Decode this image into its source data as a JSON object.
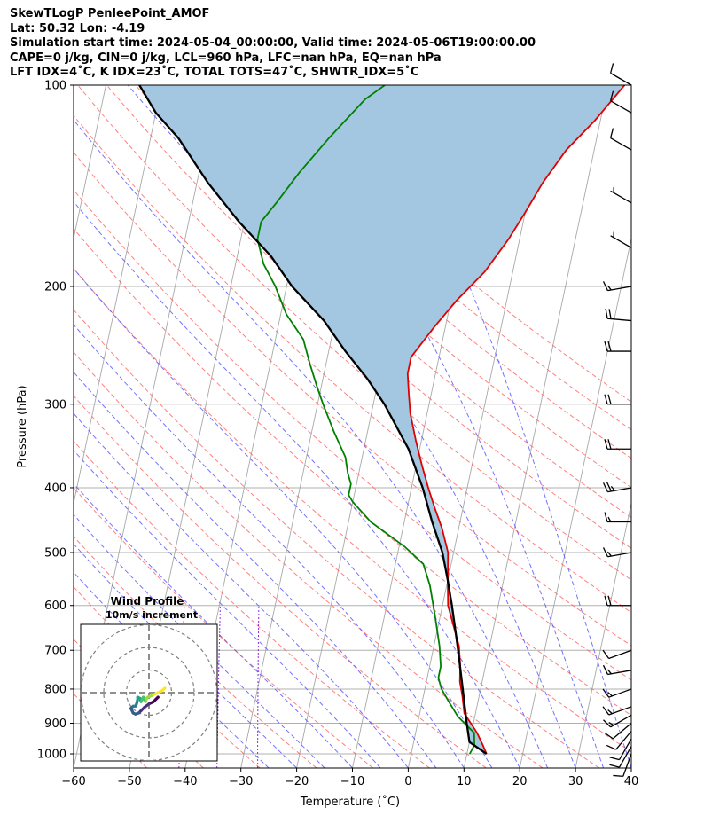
{
  "header": {
    "line1": "SkewTLogP PenleePoint_AMOF",
    "line2": "Lat: 50.32   Lon: -4.19",
    "line3": "Simulation start time: 2024-05-04_00:00:00, Valid time: 2024-05-06T19:00:00.00",
    "line4": "CAPE=0 j/kg, CIN=0 j/kg, LCL=960 hPa, LFC=nan hPa, EQ=nan hPa",
    "line5": "LFT IDX=4˚C, K IDX=23˚C, TOTAL TOTS=47˚C, SHWTR_IDX=5˚C"
  },
  "chart_data": [
    {
      "type": "skew-t log-p",
      "xlabel": "Temperature (˚C)",
      "ylabel": "Pressure (hPa)",
      "xlim": [
        -60,
        40
      ],
      "ylim": [
        1050,
        100
      ],
      "y_scale": "log",
      "x_ticks": [
        "−60",
        "−50",
        "−40",
        "−30",
        "−20",
        "−10",
        "0",
        "10",
        "20",
        "30",
        "40"
      ],
      "y_ticks": [
        "100",
        "200",
        "300",
        "400",
        "500",
        "600",
        "700",
        "800",
        "900",
        "1000"
      ],
      "grid": true,
      "colors": {
        "temperature": "#e00000",
        "dewpoint": "#008000",
        "parcel": "#000000",
        "parcel_fill": "#a3c7e0",
        "dry_adiabats": "#ff6060",
        "moist_adiabats": "#5050ff",
        "mixing_ratio": "#8a2be2",
        "isotherms": "#a8a8a8"
      },
      "series": [
        {
          "key": "temperature",
          "points": [
            [
              13.5,
              1000
            ],
            [
              12.5,
              970
            ],
            [
              11,
              930
            ],
            [
              8,
              870
            ],
            [
              7,
              820
            ],
            [
              6,
              780
            ],
            [
              5.5,
              740
            ],
            [
              4.5,
              690
            ],
            [
              3,
              650
            ],
            [
              1,
              600
            ],
            [
              0,
              550
            ],
            [
              -1,
              500
            ],
            [
              -3,
              460
            ],
            [
              -5,
              430
            ],
            [
              -7,
              400
            ],
            [
              -9,
              370
            ],
            [
              -11,
              340
            ],
            [
              -13,
              310
            ],
            [
              -14,
              290
            ],
            [
              -15,
              270
            ],
            [
              -15,
              255
            ],
            [
              -12,
              230
            ],
            [
              -9,
              210
            ],
            [
              -5,
              190
            ],
            [
              -2,
              170
            ],
            [
              0,
              155
            ],
            [
              2,
              140
            ],
            [
              5,
              125
            ],
            [
              9,
              113
            ],
            [
              13,
              100
            ]
          ]
        },
        {
          "key": "dewpoint",
          "points": [
            [
              10.5,
              1000
            ],
            [
              11,
              970
            ],
            [
              10.5,
              930
            ],
            [
              7,
              880
            ],
            [
              5,
              840
            ],
            [
              3,
              800
            ],
            [
              2,
              770
            ],
            [
              2,
              740
            ],
            [
              1,
              690
            ],
            [
              -1,
              620
            ],
            [
              -3,
              560
            ],
            [
              -5,
              520
            ],
            [
              -9,
              490
            ],
            [
              -16,
              450
            ],
            [
              -20,
              420
            ],
            [
              -21,
              410
            ],
            [
              -21,
              395
            ],
            [
              -22,
              380
            ],
            [
              -23,
              360
            ],
            [
              -26,
              330
            ],
            [
              -29,
              300
            ],
            [
              -31,
              280
            ],
            [
              -33,
              260
            ],
            [
              -35,
              240
            ],
            [
              -39,
              220
            ],
            [
              -42,
              200
            ],
            [
              -45,
              185
            ],
            [
              -47,
              170
            ],
            [
              -47,
              160
            ],
            [
              -45,
              150
            ],
            [
              -42,
              135
            ],
            [
              -38,
              120
            ],
            [
              -33,
              105
            ],
            [
              -30,
              100
            ]
          ]
        },
        {
          "key": "parcel",
          "points": [
            [
              13.5,
              1000
            ],
            [
              10,
              960
            ],
            [
              8.8,
              900
            ],
            [
              6.8,
              800
            ],
            [
              4.5,
              700
            ],
            [
              1.7,
              600
            ],
            [
              0,
              550
            ],
            [
              -2,
              500
            ],
            [
              -5,
              450
            ],
            [
              -8,
              400
            ],
            [
              -12,
              350
            ],
            [
              -18,
              300
            ],
            [
              -22,
              275
            ],
            [
              -27,
              250
            ],
            [
              -32,
              225
            ],
            [
              -39,
              200
            ],
            [
              -44,
              180
            ],
            [
              -51,
              160
            ],
            [
              -58,
              140
            ],
            [
              -65,
              120
            ],
            [
              -70,
              110
            ],
            [
              -74,
              100
            ]
          ]
        }
      ],
      "wind_barbs": [
        {
          "p": 1000,
          "speed_kt": 10,
          "dir_deg": 200
        },
        {
          "p": 975,
          "speed_kt": 10,
          "dir_deg": 210
        },
        {
          "p": 950,
          "speed_kt": 10,
          "dir_deg": 210
        },
        {
          "p": 925,
          "speed_kt": 10,
          "dir_deg": 220
        },
        {
          "p": 900,
          "speed_kt": 10,
          "dir_deg": 230
        },
        {
          "p": 875,
          "speed_kt": 15,
          "dir_deg": 240
        },
        {
          "p": 850,
          "speed_kt": 15,
          "dir_deg": 250
        },
        {
          "p": 800,
          "speed_kt": 15,
          "dir_deg": 250
        },
        {
          "p": 750,
          "speed_kt": 15,
          "dir_deg": 260
        },
        {
          "p": 700,
          "speed_kt": 10,
          "dir_deg": 250
        },
        {
          "p": 600,
          "speed_kt": 20,
          "dir_deg": 270
        },
        {
          "p": 500,
          "speed_kt": 15,
          "dir_deg": 260
        },
        {
          "p": 450,
          "speed_kt": 15,
          "dir_deg": 270
        },
        {
          "p": 400,
          "speed_kt": 25,
          "dir_deg": 260
        },
        {
          "p": 350,
          "speed_kt": 20,
          "dir_deg": 270
        },
        {
          "p": 300,
          "speed_kt": 20,
          "dir_deg": 270
        },
        {
          "p": 250,
          "speed_kt": 20,
          "dir_deg": 270
        },
        {
          "p": 225,
          "speed_kt": 20,
          "dir_deg": 275
        },
        {
          "p": 200,
          "speed_kt": 15,
          "dir_deg": 260
        },
        {
          "p": 175,
          "speed_kt": 5,
          "dir_deg": 300
        },
        {
          "p": 150,
          "speed_kt": 5,
          "dir_deg": 300
        },
        {
          "p": 125,
          "speed_kt": 10,
          "dir_deg": 300
        },
        {
          "p": 110,
          "speed_kt": 10,
          "dir_deg": 300
        },
        {
          "p": 100,
          "speed_kt": 10,
          "dir_deg": 300
        }
      ]
    },
    {
      "type": "hodograph",
      "title": "Wind Profile",
      "subtitle": "10m/s increment",
      "ring_spacing_ms": 10,
      "rings": 3,
      "colormap": "viridis",
      "points_uv": [
        [
          3.5,
          -2.5
        ],
        [
          4,
          -2
        ],
        [
          3,
          -3
        ],
        [
          2,
          -4
        ],
        [
          0,
          -5
        ],
        [
          -2,
          -6.5
        ],
        [
          -3.5,
          -8
        ],
        [
          -4.5,
          -9
        ],
        [
          -6,
          -9.5
        ],
        [
          -7,
          -9
        ],
        [
          -8,
          -7
        ],
        [
          -7,
          -6
        ],
        [
          -6,
          -6
        ],
        [
          -5.5,
          -5
        ],
        [
          -5,
          -3
        ],
        [
          -5,
          -2
        ],
        [
          -4,
          -2.5
        ],
        [
          -3.5,
          -4
        ],
        [
          -3,
          -3
        ],
        [
          -2.5,
          -2
        ],
        [
          -2,
          -3
        ],
        [
          -1.5,
          -4
        ],
        [
          -1,
          -2.5
        ],
        [
          -0.5,
          -2
        ],
        [
          2,
          -1
        ],
        [
          4,
          0
        ],
        [
          6,
          1
        ],
        [
          7,
          2
        ]
      ]
    }
  ]
}
